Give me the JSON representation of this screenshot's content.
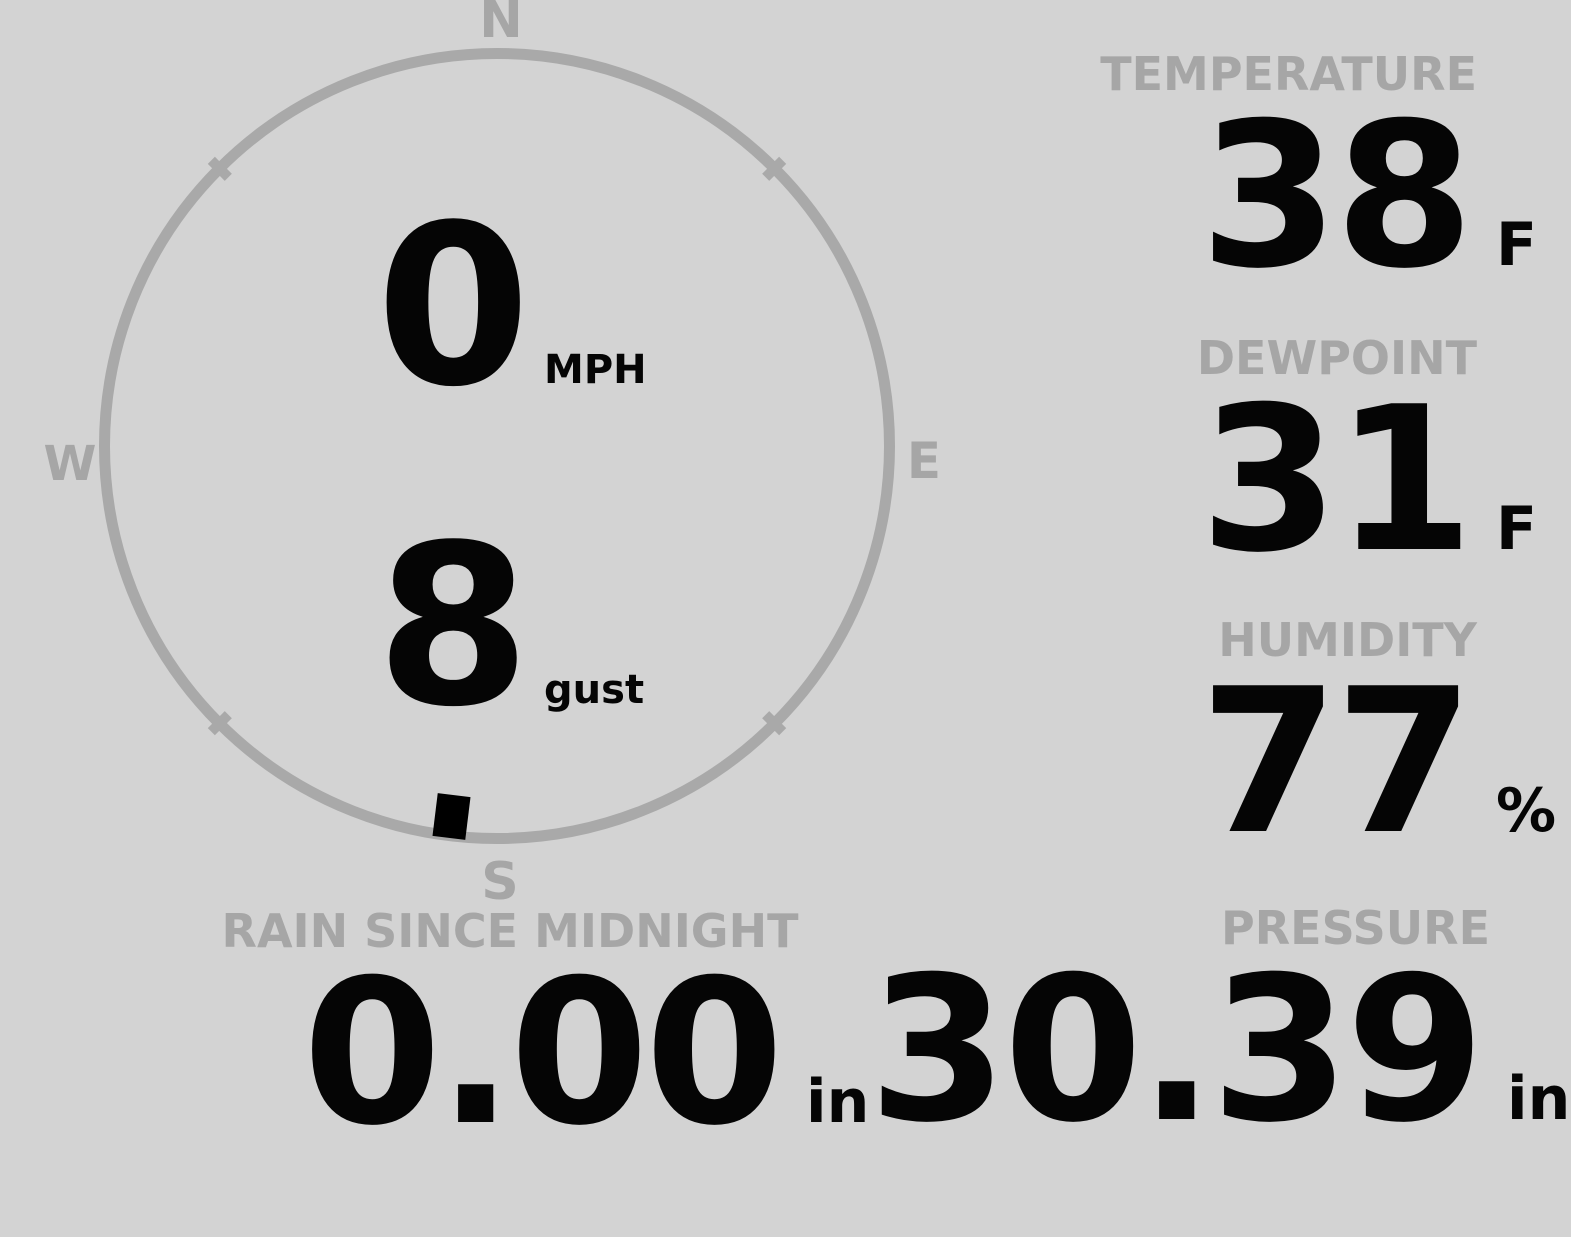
{
  "wind": {
    "speed": "0",
    "speed_unit": "MPH",
    "gust": "8",
    "gust_unit": "gust",
    "direction_deg": 187,
    "compass": {
      "north": "N",
      "east": "E",
      "south": "S",
      "west": "W"
    }
  },
  "metrics": {
    "temperature": {
      "label": "TEMPERATURE",
      "value": "38",
      "unit": "F"
    },
    "dewpoint": {
      "label": "DEWPOINT",
      "value": "31",
      "unit": "F"
    },
    "humidity": {
      "label": "HUMIDITY",
      "value": "77",
      "unit": "%"
    },
    "rain": {
      "label": "RAIN SINCE MIDNIGHT",
      "value": "0.00",
      "unit": "in"
    },
    "pressure": {
      "label": "PRESSURE",
      "value": "30.39",
      "unit": "in"
    }
  },
  "colors": {
    "background": "#d3d3d3",
    "muted_gray": "#a8a8a8",
    "value_text": "#050505",
    "marker": "#000000"
  }
}
